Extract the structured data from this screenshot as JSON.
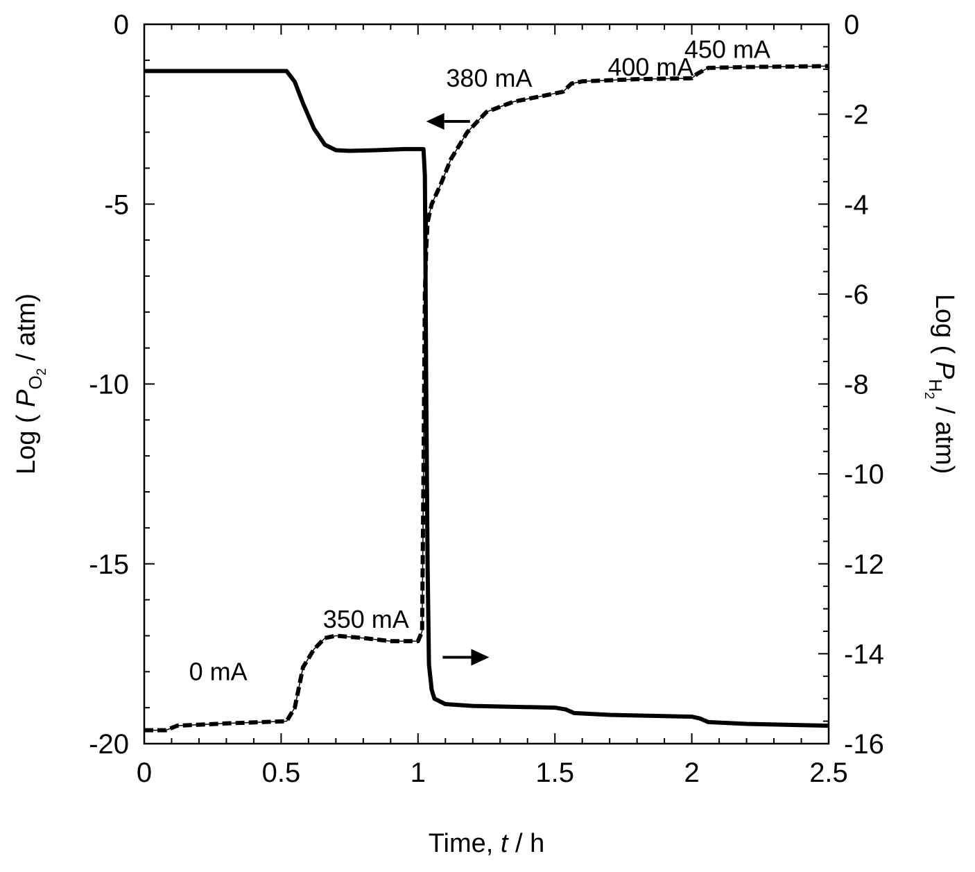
{
  "chart_data": {
    "type": "line",
    "xlabel": "Time, t / h",
    "xlabel_parts": [
      "Time, ",
      "t",
      " / h"
    ],
    "ylabel_left": "Log ( PO2 / atm)",
    "ylabel_left_parts": [
      "Log ( ",
      "P",
      "O",
      "2",
      " / atm)"
    ],
    "ylabel_right": "Log ( PH2 / atm)",
    "ylabel_right_parts": [
      "Log ( ",
      "P",
      "H",
      "2",
      " / atm)"
    ],
    "xlim": [
      0,
      2.5
    ],
    "ylim_left": [
      -20,
      0
    ],
    "ylim_right": [
      -16,
      0
    ],
    "x_ticks": [
      "0",
      "0.5",
      "1",
      "1.5",
      "2",
      "2.5"
    ],
    "y_left_ticks": [
      "0",
      "-5",
      "-10",
      "-15",
      "-20"
    ],
    "y_right_ticks": [
      "0",
      "-2",
      "-4",
      "-6",
      "-8",
      "-10",
      "-12",
      "-14",
      "-16"
    ],
    "grid": false,
    "series": [
      {
        "axis": "left",
        "style": "solid",
        "color": "#000000",
        "points": [
          [
            0,
            -1.3
          ],
          [
            0.52,
            -1.3
          ],
          [
            0.55,
            -1.6
          ],
          [
            0.58,
            -2.2
          ],
          [
            0.62,
            -2.9
          ],
          [
            0.66,
            -3.35
          ],
          [
            0.7,
            -3.5
          ],
          [
            0.75,
            -3.52
          ],
          [
            0.85,
            -3.5
          ],
          [
            0.95,
            -3.47
          ],
          [
            1.02,
            -3.47
          ],
          [
            1.025,
            -4.2
          ],
          [
            1.027,
            -6.5
          ],
          [
            1.03,
            -10.0
          ],
          [
            1.035,
            -15.0
          ],
          [
            1.04,
            -17.8
          ],
          [
            1.05,
            -18.5
          ],
          [
            1.06,
            -18.75
          ],
          [
            1.1,
            -18.9
          ],
          [
            1.2,
            -18.95
          ],
          [
            1.5,
            -19.0
          ],
          [
            1.54,
            -19.05
          ],
          [
            1.57,
            -19.15
          ],
          [
            1.7,
            -19.2
          ],
          [
            2.0,
            -19.25
          ],
          [
            2.03,
            -19.3
          ],
          [
            2.06,
            -19.4
          ],
          [
            2.2,
            -19.45
          ],
          [
            2.5,
            -19.5
          ]
        ]
      },
      {
        "axis": "right",
        "style": "dashed",
        "color": "#000000",
        "points": [
          [
            0,
            -15.7
          ],
          [
            0.08,
            -15.7
          ],
          [
            0.12,
            -15.6
          ],
          [
            0.3,
            -15.55
          ],
          [
            0.52,
            -15.5
          ],
          [
            0.55,
            -15.2
          ],
          [
            0.58,
            -14.3
          ],
          [
            0.62,
            -13.9
          ],
          [
            0.66,
            -13.65
          ],
          [
            0.7,
            -13.6
          ],
          [
            0.8,
            -13.65
          ],
          [
            0.9,
            -13.72
          ],
          [
            1.0,
            -13.72
          ],
          [
            1.015,
            -13.5
          ],
          [
            1.02,
            -10.0
          ],
          [
            1.025,
            -6.0
          ],
          [
            1.03,
            -5.0
          ],
          [
            1.035,
            -4.4
          ],
          [
            1.05,
            -4.0
          ],
          [
            1.08,
            -3.6
          ],
          [
            1.12,
            -3.0
          ],
          [
            1.18,
            -2.4
          ],
          [
            1.25,
            -1.95
          ],
          [
            1.35,
            -1.72
          ],
          [
            1.45,
            -1.6
          ],
          [
            1.53,
            -1.5
          ],
          [
            1.56,
            -1.32
          ],
          [
            1.6,
            -1.27
          ],
          [
            1.8,
            -1.22
          ],
          [
            2.0,
            -1.2
          ],
          [
            2.02,
            -1.1
          ],
          [
            2.06,
            -0.97
          ],
          [
            2.2,
            -0.95
          ],
          [
            2.5,
            -0.93
          ]
        ]
      }
    ],
    "annotations": [
      {
        "text": "0 mA",
        "x": 0.27,
        "y_left": -18.0
      },
      {
        "text": "350 mA",
        "x": 0.81,
        "y_left": -16.55
      },
      {
        "text": "380 mA",
        "x": 1.26,
        "y_left": -1.5
      },
      {
        "text": "400 mA",
        "x": 1.85,
        "y_left": -1.2
      },
      {
        "text": "450 mA",
        "x": 2.13,
        "y_left": -0.7
      }
    ],
    "arrows": [
      {
        "direction": "left",
        "points_to": "left-axis",
        "from_x": 1.19,
        "to_x": 1.03,
        "y_left": -2.7
      },
      {
        "direction": "right",
        "points_to": "right-axis",
        "from_x": 1.09,
        "to_x": 1.26,
        "y_left": -17.6
      }
    ]
  }
}
